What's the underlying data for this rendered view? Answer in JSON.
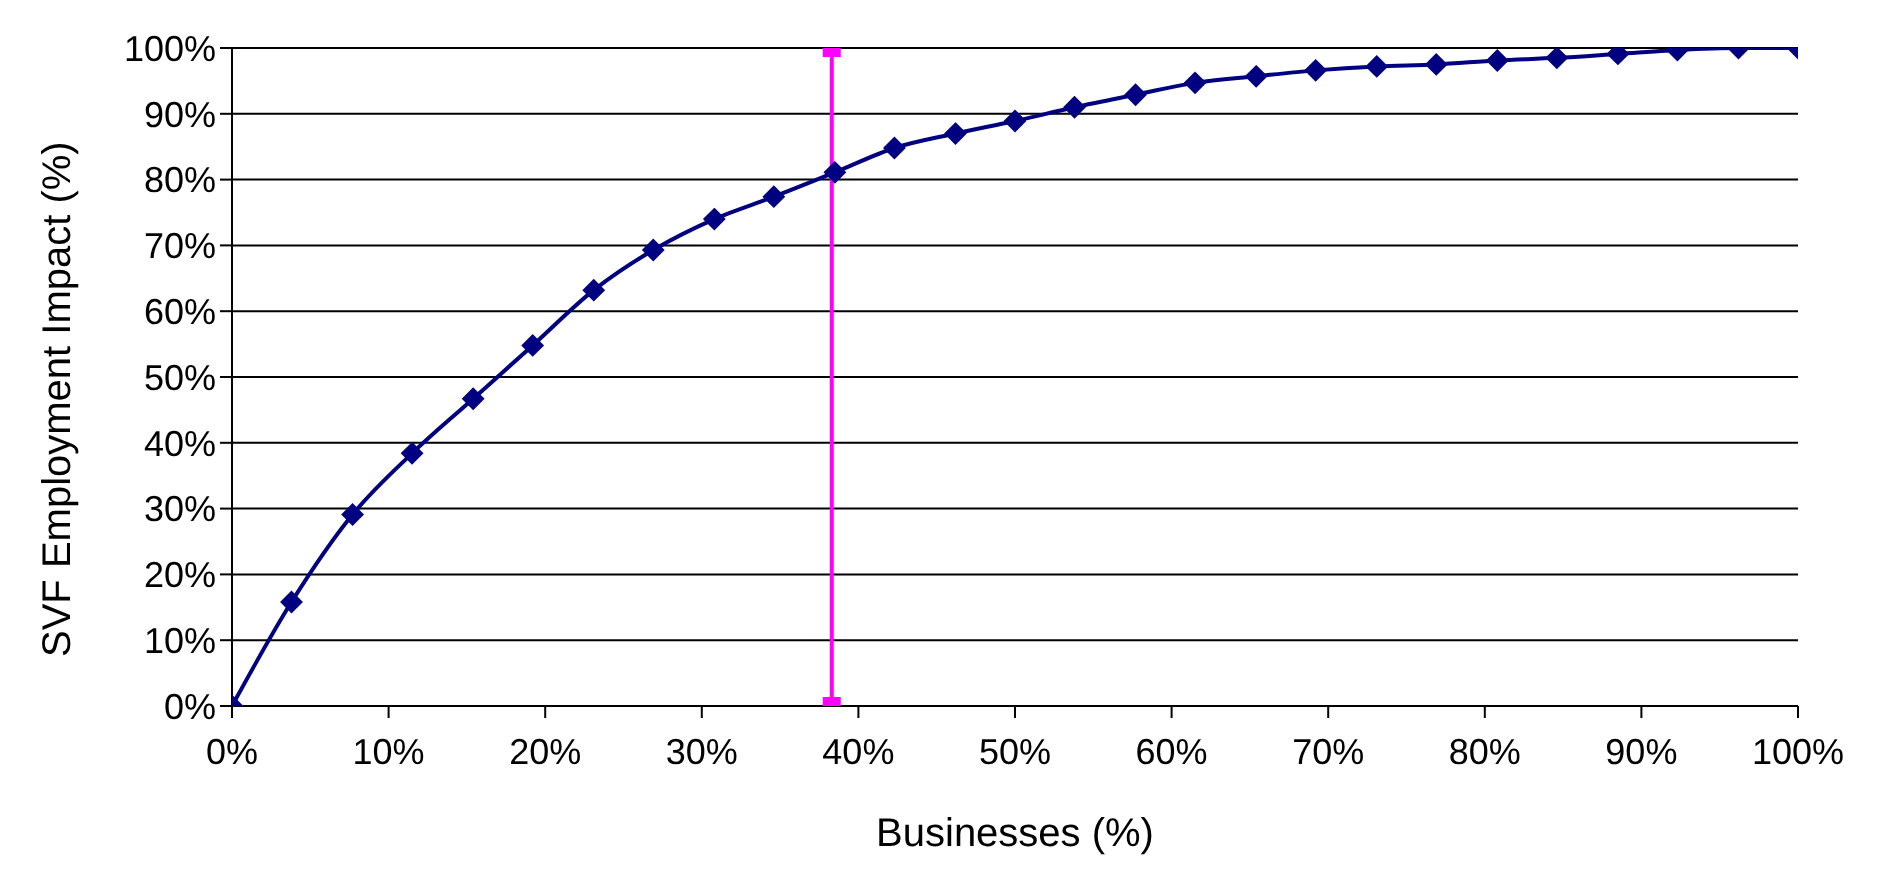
{
  "chart_data": {
    "type": "line",
    "xlabel": "Businesses (%)",
    "ylabel": "SVF Employment Impact (%)",
    "xlim": [
      0,
      100
    ],
    "ylim": [
      0,
      100
    ],
    "xticks": [
      {
        "value": 0,
        "label": "0%"
      },
      {
        "value": 10,
        "label": "10%"
      },
      {
        "value": 20,
        "label": "20%"
      },
      {
        "value": 30,
        "label": "30%"
      },
      {
        "value": 40,
        "label": "40%"
      },
      {
        "value": 50,
        "label": "50%"
      },
      {
        "value": 60,
        "label": "60%"
      },
      {
        "value": 70,
        "label": "70%"
      },
      {
        "value": 80,
        "label": "80%"
      },
      {
        "value": 90,
        "label": "90%"
      },
      {
        "value": 100,
        "label": "100%"
      }
    ],
    "yticks": [
      {
        "value": 0,
        "label": "0%"
      },
      {
        "value": 10,
        "label": "10%"
      },
      {
        "value": 20,
        "label": "20%"
      },
      {
        "value": 30,
        "label": "30%"
      },
      {
        "value": 40,
        "label": "40%"
      },
      {
        "value": 50,
        "label": "50%"
      },
      {
        "value": 60,
        "label": "60%"
      },
      {
        "value": 70,
        "label": "70%"
      },
      {
        "value": 80,
        "label": "80%"
      },
      {
        "value": 90,
        "label": "90%"
      },
      {
        "value": 100,
        "label": "100%"
      }
    ],
    "grid": "y",
    "series": [
      {
        "color": "#000080",
        "marker": "diamond",
        "x": [
          0,
          3.8,
          7.7,
          11.5,
          15.4,
          19.2,
          23.1,
          26.9,
          30.8,
          34.6,
          38.5,
          42.3,
          46.2,
          50,
          53.8,
          57.7,
          61.5,
          65.4,
          69.2,
          73.1,
          76.9,
          80.8,
          84.6,
          88.5,
          92.3,
          96.2,
          100
        ],
        "values": [
          0,
          15.8,
          29.1,
          38.4,
          46.7,
          54.8,
          63.2,
          69.3,
          74,
          77.4,
          81.1,
          84.8,
          87,
          88.9,
          91,
          92.9,
          94.7,
          95.7,
          96.6,
          97.2,
          97.5,
          98.1,
          98.5,
          99.1,
          99.7,
          100,
          100
        ]
      },
      {
        "color": "#ff00ff",
        "marker": "square",
        "x": [
          38.3,
          38.3
        ],
        "values": [
          0,
          100
        ]
      }
    ]
  }
}
